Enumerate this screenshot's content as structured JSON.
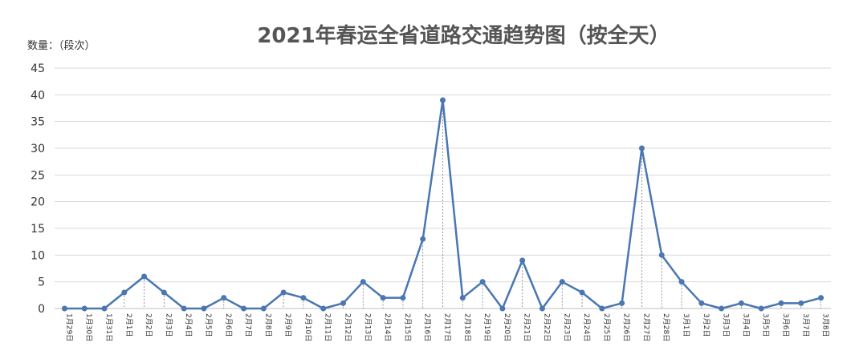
{
  "chart_data": {
    "type": "line",
    "title": "2021年春运全省道路交通趋势图（按全天）",
    "ylabel": "数量：（段次）",
    "ylim": [
      0,
      45
    ],
    "yticks": [
      "0",
      "5",
      "10",
      "15",
      "20",
      "25",
      "30",
      "35",
      "40",
      "45"
    ],
    "grid": true,
    "categories": [
      "1月29日",
      "1月30日",
      "1月31日",
      "2月1日",
      "2月2日",
      "2月3日",
      "2月4日",
      "2月5日",
      "2月6日",
      "2月7日",
      "2月8日",
      "2月9日",
      "2月10日",
      "2月11日",
      "2月12日",
      "2月13日",
      "2月14日",
      "2月15日",
      "2月16日",
      "2月17日",
      "2月18日",
      "2月19日",
      "2月20日",
      "2月21日",
      "2月22日",
      "2月23日",
      "2月24日",
      "2月25日",
      "2月26日",
      "2月27日",
      "2月28日",
      "3月1日",
      "3月2日",
      "3月3日",
      "3月4日",
      "3月5日",
      "3月6日",
      "3月7日",
      "3月8日"
    ],
    "series": [
      {
        "values": [
          0,
          0,
          0,
          3,
          6,
          3,
          0,
          0,
          2,
          0,
          0,
          3,
          2,
          0,
          1,
          5,
          2,
          2,
          13,
          39,
          2,
          5,
          0,
          9,
          0,
          5,
          3,
          0,
          1,
          30,
          10,
          5,
          1,
          0,
          1,
          0,
          1,
          1,
          2
        ]
      }
    ],
    "colors": {
      "line": "#4a76b2",
      "grid": "#d9d9d9",
      "drop": "#7f7f7f"
    }
  }
}
